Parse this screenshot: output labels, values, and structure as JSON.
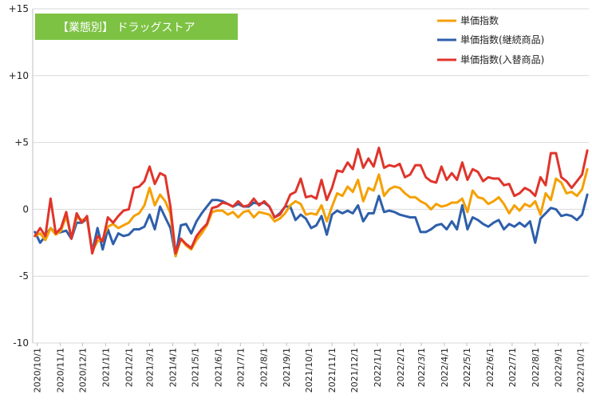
{
  "chart_data": {
    "type": "line",
    "title": "【業態別】 ドラッグストア",
    "title_bg": "#7dc243",
    "xlabel": "",
    "ylabel": "",
    "ylim": [
      -10,
      15
    ],
    "yticks": [
      {
        "value": 15,
        "label": "+15"
      },
      {
        "value": 10,
        "label": "+10"
      },
      {
        "value": 5,
        "label": "+5"
      },
      {
        "value": 0,
        "label": "0"
      },
      {
        "value": -5,
        "label": "-5"
      },
      {
        "value": -10,
        "label": "-10"
      }
    ],
    "grid": true,
    "legend_position": "top-right",
    "x_dates": [
      "2020-09-28",
      "2020-10-05",
      "2020-10-12",
      "2020-10-19",
      "2020-10-26",
      "2020-11-02",
      "2020-11-09",
      "2020-11-16",
      "2020-11-23",
      "2020-11-30",
      "2020-12-07",
      "2020-12-14",
      "2020-12-21",
      "2020-12-28",
      "2021-01-04",
      "2021-01-11",
      "2021-01-18",
      "2021-01-25",
      "2021-02-01",
      "2021-02-08",
      "2021-02-15",
      "2021-02-22",
      "2021-03-01",
      "2021-03-08",
      "2021-03-15",
      "2021-03-22",
      "2021-03-29",
      "2021-04-05",
      "2021-04-12",
      "2021-04-19",
      "2021-04-26",
      "2021-05-03",
      "2021-05-10",
      "2021-05-17",
      "2021-05-24",
      "2021-05-31",
      "2021-06-07",
      "2021-06-14",
      "2021-06-21",
      "2021-06-28",
      "2021-07-05",
      "2021-07-12",
      "2021-07-19",
      "2021-07-26",
      "2021-08-02",
      "2021-08-09",
      "2021-08-16",
      "2021-08-23",
      "2021-08-30",
      "2021-09-06",
      "2021-09-13",
      "2021-09-20",
      "2021-09-27",
      "2021-10-04",
      "2021-10-11",
      "2021-10-18",
      "2021-10-25",
      "2021-11-01",
      "2021-11-08",
      "2021-11-15",
      "2021-11-22",
      "2021-11-29",
      "2021-12-06",
      "2021-12-13",
      "2021-12-20",
      "2021-12-27",
      "2022-01-03",
      "2022-01-10",
      "2022-01-17",
      "2022-01-24",
      "2022-01-31",
      "2022-02-07",
      "2022-02-14",
      "2022-02-21",
      "2022-02-28",
      "2022-03-07",
      "2022-03-14",
      "2022-03-21",
      "2022-03-28",
      "2022-04-04",
      "2022-04-11",
      "2022-04-18",
      "2022-04-25",
      "2022-05-02",
      "2022-05-09",
      "2022-05-16",
      "2022-05-23",
      "2022-05-30",
      "2022-06-06",
      "2022-06-13",
      "2022-06-20",
      "2022-06-27",
      "2022-07-04",
      "2022-07-11",
      "2022-07-18",
      "2022-07-25",
      "2022-08-01",
      "2022-08-08",
      "2022-08-15",
      "2022-08-22",
      "2022-08-29",
      "2022-09-05",
      "2022-09-12",
      "2022-09-19",
      "2022-09-26",
      "2022-10-03",
      "2022-10-10"
    ],
    "x_tick_labels": [
      {
        "date": "2020-10-01",
        "label": "2020/10/1"
      },
      {
        "date": "2020-11-01",
        "label": "2020/11/1"
      },
      {
        "date": "2020-12-01",
        "label": "2020/12/1"
      },
      {
        "date": "2021-01-01",
        "label": "2021/1/1"
      },
      {
        "date": "2021-02-01",
        "label": "2021/2/1"
      },
      {
        "date": "2021-03-01",
        "label": "2021/3/1"
      },
      {
        "date": "2021-04-01",
        "label": "2021/4/1"
      },
      {
        "date": "2021-05-01",
        "label": "2021/5/1"
      },
      {
        "date": "2021-06-01",
        "label": "2021/6/1"
      },
      {
        "date": "2021-07-01",
        "label": "2021/7/1"
      },
      {
        "date": "2021-08-01",
        "label": "2021/8/1"
      },
      {
        "date": "2021-09-01",
        "label": "2021/9/1"
      },
      {
        "date": "2021-10-01",
        "label": "2021/10/1"
      },
      {
        "date": "2021-11-01",
        "label": "2021/11/1"
      },
      {
        "date": "2021-12-01",
        "label": "2021/12/1"
      },
      {
        "date": "2022-01-01",
        "label": "2022/1/1"
      },
      {
        "date": "2022-02-01",
        "label": "2022/2/1"
      },
      {
        "date": "2022-03-01",
        "label": "2022/3/1"
      },
      {
        "date": "2022-04-01",
        "label": "2022/4/1"
      },
      {
        "date": "2022-05-01",
        "label": "2022/5/1"
      },
      {
        "date": "2022-06-01",
        "label": "2022/6/1"
      },
      {
        "date": "2022-07-01",
        "label": "2022/7/1"
      },
      {
        "date": "2022-08-01",
        "label": "2022/8/1"
      },
      {
        "date": "2022-09-01",
        "label": "2022/9/1"
      },
      {
        "date": "2022-10-01",
        "label": "2022/10/1"
      }
    ],
    "series": [
      {
        "name": "単価指数",
        "color": "#f5a000",
        "values": [
          -2.0,
          -1.8,
          -2.3,
          -1.4,
          -1.9,
          -1.6,
          -0.5,
          -2.1,
          -0.6,
          -0.8,
          -0.7,
          -3.1,
          -2.4,
          -2.2,
          -1.3,
          -1.1,
          -1.4,
          -1.2,
          -1.0,
          -0.5,
          -0.3,
          0.3,
          1.6,
          0.3,
          1.1,
          0.6,
          -0.3,
          -3.5,
          -2.2,
          -2.7,
          -3.0,
          -2.3,
          -1.8,
          -1.2,
          -0.2,
          -0.1,
          -0.1,
          -0.4,
          -0.2,
          -0.6,
          -0.2,
          -0.1,
          -0.6,
          -0.2,
          -0.3,
          -0.4,
          -0.9,
          -0.7,
          -0.3,
          0.3,
          0.6,
          0.4,
          -0.4,
          -0.3,
          -0.4,
          0.3,
          -0.9,
          0.2,
          1.2,
          1.0,
          1.7,
          1.3,
          2.2,
          0.6,
          1.6,
          1.4,
          2.6,
          1.0,
          1.5,
          1.7,
          1.6,
          1.2,
          0.9,
          0.9,
          0.6,
          0.4,
          0.0,
          0.4,
          0.2,
          0.3,
          0.5,
          0.5,
          0.8,
          -0.2,
          1.4,
          0.9,
          0.8,
          0.4,
          0.6,
          0.9,
          0.4,
          -0.3,
          0.3,
          -0.1,
          0.4,
          0.2,
          0.6,
          -0.4,
          1.2,
          0.7,
          2.3,
          2.0,
          1.2,
          1.3,
          1.0,
          1.5,
          3.0
        ]
      },
      {
        "name": "単価指数(継続商品)",
        "color": "#2e5faa",
        "values": [
          -1.7,
          -2.5,
          -2.0,
          -1.4,
          -1.8,
          -1.7,
          -1.6,
          -2.2,
          -1.0,
          -1.0,
          -0.7,
          -3.2,
          -1.4,
          -3.0,
          -1.5,
          -2.6,
          -1.8,
          -2.0,
          -1.9,
          -1.5,
          -1.5,
          -1.3,
          -0.4,
          -1.5,
          0.2,
          -0.6,
          -1.4,
          -3.5,
          -1.2,
          -1.1,
          -1.8,
          -0.9,
          -0.3,
          0.2,
          0.7,
          0.7,
          0.6,
          0.4,
          0.2,
          0.4,
          0.2,
          0.2,
          0.5,
          0.4,
          0.5,
          0.2,
          -0.6,
          -0.3,
          0.2,
          0.2,
          -0.8,
          -0.4,
          -0.7,
          -1.4,
          -1.2,
          -0.5,
          -1.9,
          -0.4,
          -0.1,
          -0.3,
          -0.1,
          -0.3,
          0.3,
          -0.9,
          -0.3,
          -0.3,
          1.0,
          -0.2,
          -0.1,
          -0.2,
          -0.4,
          -0.5,
          -0.6,
          -0.6,
          -1.7,
          -1.7,
          -1.5,
          -1.2,
          -1.1,
          -1.5,
          -0.9,
          -1.5,
          0.3,
          -1.5,
          -0.6,
          -0.8,
          -1.1,
          -1.3,
          -1.0,
          -0.8,
          -1.5,
          -1.1,
          -1.3,
          -1.0,
          -1.3,
          -0.9,
          -2.5,
          -0.7,
          -0.3,
          0.1,
          0.0,
          -0.5,
          -0.4,
          -0.5,
          -0.8,
          -0.4,
          1.1
        ]
      },
      {
        "name": "単価指数(入替商品)",
        "color": "#e0342b",
        "values": [
          -2.0,
          -1.4,
          -2.0,
          0.8,
          -1.8,
          -1.4,
          -0.2,
          -2.2,
          -0.3,
          -1.0,
          -0.5,
          -3.3,
          -2.0,
          -2.4,
          -0.6,
          -1.0,
          -0.5,
          -0.1,
          0.0,
          1.6,
          1.7,
          2.1,
          3.2,
          1.9,
          2.7,
          2.5,
          0.2,
          -3.3,
          -2.2,
          -2.6,
          -2.9,
          -2.0,
          -1.5,
          -1.1,
          0.1,
          0.2,
          0.5,
          0.4,
          0.2,
          0.6,
          0.2,
          0.3,
          0.8,
          0.3,
          0.6,
          0.2,
          -0.6,
          -0.4,
          0.2,
          1.1,
          1.3,
          2.3,
          0.9,
          1.0,
          0.8,
          2.2,
          0.7,
          1.6,
          2.9,
          2.8,
          3.5,
          3.0,
          4.5,
          3.1,
          3.8,
          3.2,
          4.6,
          3.1,
          3.3,
          3.2,
          3.4,
          2.4,
          2.6,
          3.3,
          3.3,
          2.4,
          2.1,
          2.0,
          3.2,
          2.2,
          2.7,
          2.2,
          3.5,
          2.2,
          3.0,
          2.8,
          2.1,
          2.4,
          2.3,
          2.3,
          1.8,
          1.9,
          1.0,
          1.2,
          1.6,
          1.4,
          1.0,
          2.4,
          1.8,
          4.2,
          4.2,
          2.4,
          2.1,
          1.6,
          2.1,
          2.6,
          4.4
        ]
      }
    ]
  }
}
